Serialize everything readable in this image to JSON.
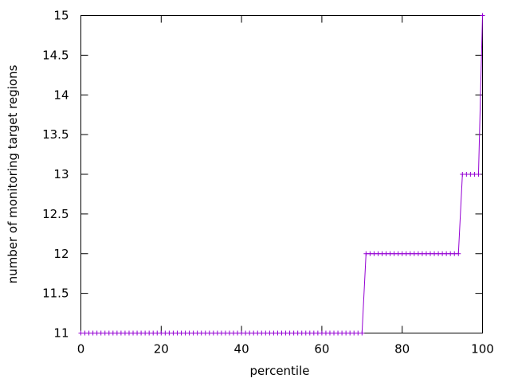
{
  "chart_data": {
    "type": "line",
    "title": "",
    "xlabel": "percentile",
    "ylabel": "number of monitoring target regions",
    "xlim": [
      0,
      100
    ],
    "ylim": [
      11,
      15
    ],
    "x_ticks": [
      0,
      20,
      40,
      60,
      80,
      100
    ],
    "y_ticks": [
      11,
      11.5,
      12,
      12.5,
      13,
      13.5,
      14,
      14.5,
      15
    ],
    "x_tick_labels": [
      "0",
      "20",
      "40",
      "60",
      "80",
      "100"
    ],
    "y_tick_labels": [
      "11",
      "11.5",
      "12",
      "12.5",
      "13",
      "13.5",
      "14",
      "14.5",
      "15"
    ],
    "grid": false,
    "legend": "none",
    "marker": "plus",
    "series": [
      {
        "color": "#9400d3",
        "steps": [
          {
            "from": 0,
            "to": 70,
            "y": 11
          },
          {
            "from": 71,
            "to": 94,
            "y": 12
          },
          {
            "from": 95,
            "to": 99,
            "y": 13
          },
          {
            "from": 100,
            "to": 100,
            "y": 15
          }
        ]
      }
    ]
  }
}
